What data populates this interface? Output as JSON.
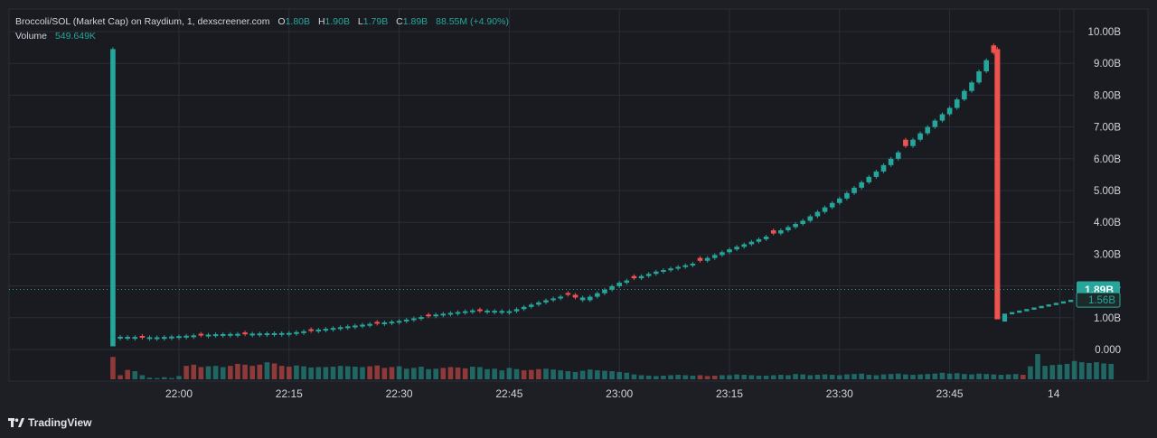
{
  "legend": {
    "title": "Broccoli/SOL (Market Cap) on Raydium, 1, dexscreener.com",
    "o_label": "O",
    "o_value": "1.80B",
    "h_label": "H",
    "h_value": "1.90B",
    "l_label": "L",
    "l_value": "1.79B",
    "c_label": "C",
    "c_value": "1.89B",
    "change": "88.55M (+4.90%)",
    "volume_label": "Volume",
    "volume_value": "549.649K"
  },
  "price_badges": {
    "last": "1.89B",
    "secondary": "1.56B"
  },
  "branding": {
    "name": "TradingView"
  },
  "colors": {
    "background": "#1e1f25",
    "grid": "#2a2e39",
    "up": "#26a69a",
    "down": "#ef5350",
    "text": "#d1d4dc"
  },
  "chart_data": {
    "type": "candlestick",
    "title": "Broccoli/SOL (Market Cap) on Raydium, 1, dexscreener.com",
    "y_unit": "B",
    "ylim": [
      -0.9,
      10.5
    ],
    "y_ticks": [
      "0.000",
      "1.00B",
      "2.00B",
      "3.00B",
      "4.00B",
      "5.00B",
      "6.00B",
      "7.00B",
      "8.00B",
      "9.00B",
      "10.00B"
    ],
    "y_tick_values": [
      0,
      1,
      2,
      3,
      4,
      5,
      6,
      7,
      8,
      9,
      10
    ],
    "x_tick_labels": [
      "22:00",
      "22:15",
      "22:30",
      "22:45",
      "23:00",
      "23:15",
      "23:30",
      "23:45",
      "14"
    ],
    "x_tick_minutes": [
      0,
      15,
      30,
      45,
      60,
      75,
      90,
      105,
      120
    ],
    "x_range_minutes": [
      -10.5,
      122.3
    ],
    "last_price": 1.89,
    "grid": true,
    "close_anchors": [
      [
        -9,
        0.4
      ],
      [
        -3,
        0.38
      ],
      [
        0,
        0.42
      ],
      [
        5,
        0.48
      ],
      [
        10,
        0.5
      ],
      [
        15,
        0.52
      ],
      [
        20,
        0.65
      ],
      [
        25,
        0.78
      ],
      [
        30,
        0.9
      ],
      [
        35,
        1.1
      ],
      [
        40,
        1.23
      ],
      [
        45,
        1.2
      ],
      [
        50,
        1.55
      ],
      [
        53,
        1.72
      ],
      [
        55,
        1.55
      ],
      [
        60,
        2.1
      ],
      [
        65,
        2.45
      ],
      [
        70,
        2.7
      ],
      [
        75,
        3.15
      ],
      [
        80,
        3.55
      ],
      [
        85,
        4.05
      ],
      [
        90,
        4.75
      ],
      [
        95,
        5.6
      ],
      [
        100,
        6.6
      ],
      [
        105,
        7.6
      ],
      [
        108,
        8.4
      ],
      [
        110,
        9.1
      ],
      [
        111.5,
        9.45
      ]
    ],
    "red_markers": [
      [
        -5,
        0.38
      ],
      [
        3,
        0.45
      ],
      [
        9,
        0.5
      ],
      [
        18,
        0.6
      ],
      [
        27,
        0.82
      ],
      [
        34,
        1.0
      ],
      [
        41,
        1.22
      ],
      [
        53.5,
        1.7
      ],
      [
        62,
        2.05
      ],
      [
        71,
        2.75
      ],
      [
        81,
        3.8
      ],
      [
        99,
        6.65
      ],
      [
        111.5,
        9.45
      ]
    ],
    "crash_candle": {
      "minute": 111.5,
      "open": 9.45,
      "high": 9.52,
      "low": 0.95,
      "close": 0.95
    },
    "after_crash": {
      "start_minute": 112.5,
      "start_value": 1.1,
      "end_minute": 122,
      "end_value": 1.56
    },
    "volume": {
      "label": "Volume",
      "values": [
        5.5,
        1,
        2.3,
        2,
        1,
        0.4,
        0.3,
        0.5,
        0.3,
        0.8,
        3.3,
        3.6,
        3,
        3.2,
        3.3,
        3,
        3.3,
        3.8,
        3.6,
        3.3,
        3.6,
        4.2,
        3.9,
        3.3,
        3.1,
        3.4,
        3.2,
        2.9,
        3,
        3,
        3.1,
        3.3,
        3.2,
        3.1,
        3,
        3.2,
        3.4,
        2.8,
        3,
        3.2,
        2.6,
        2.8,
        3.1,
        2.5,
        2.6,
        2.8,
        3,
        2.9,
        2.7,
        3.1,
        3,
        2.5,
        2.6,
        2.2,
        2.8,
        2.5,
        2.2,
        2.3,
        2.5,
        2.6,
        2.4,
        2.2,
        2,
        1.8,
        2.1,
        2.4,
        2.2,
        2.1,
        2,
        1.8,
        1.6,
        1.2,
        1,
        0.9,
        0.8,
        0.9,
        1,
        1.1,
        1,
        0.9,
        1,
        0.8,
        0.9,
        1,
        1,
        1.2,
        1.1,
        1,
        0.9,
        0.9,
        1,
        1.1,
        1,
        1.3,
        1.2,
        1,
        1.1,
        1.2,
        1.1,
        1,
        1.2,
        1.3,
        1.4,
        1.1,
        1,
        1.2,
        1.3,
        1.4,
        1.2,
        1.1,
        1.2,
        1.3,
        1.4,
        1.6,
        1.4,
        1.5,
        1.3,
        1.2,
        1.4,
        1.3,
        1.2,
        1.1,
        1.2,
        1.3,
        1.1,
        3.2,
        6.2,
        3.3,
        3.5,
        3.6,
        3.8,
        4.5,
        4.2,
        4,
        4.2,
        3.9,
        3.8
      ],
      "down_ranges": [
        [
          0,
          2
        ],
        [
          10,
          12
        ],
        [
          16,
          20
        ],
        [
          22,
          24
        ],
        [
          35,
          38
        ],
        [
          45,
          48
        ],
        [
          56,
          58
        ],
        [
          80,
          82
        ],
        [
          124,
          124
        ]
      ]
    }
  }
}
